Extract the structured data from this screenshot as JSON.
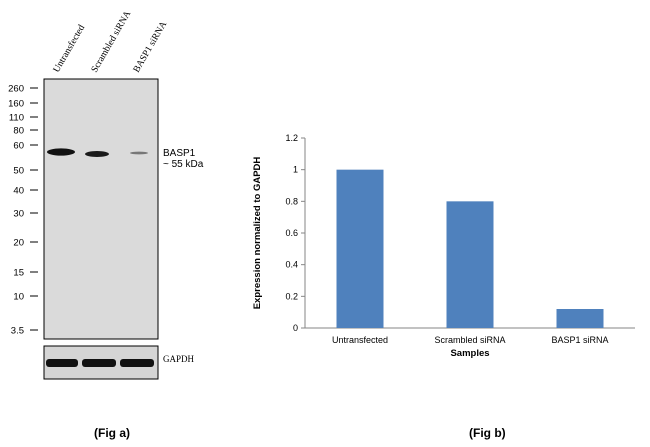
{
  "figure_a": {
    "lanes": [
      "Untransfected",
      "Scrambled siRNA",
      "BASP1 siRNA"
    ],
    "markers": [
      "260",
      "160",
      "110",
      "80",
      "60",
      "50",
      "40",
      "30",
      "20",
      "15",
      "10",
      "3.5"
    ],
    "target_label": "BASP1",
    "target_size": "~ 55 kDa",
    "loading_control": "GAPDH",
    "caption": "(Fig a)"
  },
  "figure_b": {
    "caption": "(Fig b)"
  },
  "chart_data": {
    "type": "bar",
    "categories": [
      "Untransfected",
      "Scrambled siRNA",
      "BASP1 siRNA"
    ],
    "values": [
      1.0,
      0.8,
      0.12
    ],
    "ylabel": "Expression normalized to GAPDH",
    "xlabel": "Samples",
    "ylim": [
      0,
      1.2
    ],
    "yticks": [
      "0",
      "0.2",
      "0.4",
      "0.6",
      "0.8",
      "1",
      "1.2"
    ],
    "grid": false,
    "bar_color": "#4f81bd"
  }
}
